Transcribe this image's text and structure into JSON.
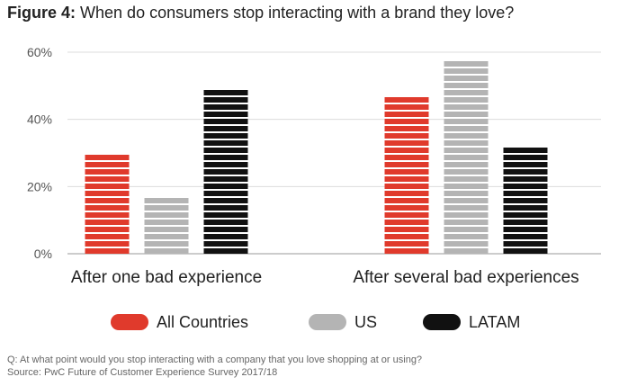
{
  "title": {
    "prefix": "Figure 4:",
    "text": "When do consumers stop interacting with a brand they love?"
  },
  "chart_data": {
    "type": "bar",
    "title": "When do consumers stop interacting with a brand they love?",
    "categories": [
      "After one bad experience",
      "After several bad experiences"
    ],
    "series": [
      {
        "name": "All Countries",
        "color": "#e03a2c",
        "values": [
          30,
          48
        ]
      },
      {
        "name": "US",
        "color": "#b4b4b4",
        "values": [
          18,
          58
        ]
      },
      {
        "name": "LATAM",
        "color": "#111111",
        "values": [
          50,
          32
        ]
      }
    ],
    "ylim": [
      0,
      60
    ],
    "yticks": [
      0,
      20,
      40,
      60
    ],
    "ytick_labels": [
      "0%",
      "20%",
      "40%",
      "60%"
    ],
    "ylabel": "",
    "xlabel": "",
    "grid": true,
    "legend_position": "bottom"
  },
  "footnote": {
    "question": "Q: At what point would you stop interacting with a company that you love shopping at or using?",
    "source": "Source: PwC Future of Customer Experience Survey 2017/18"
  }
}
